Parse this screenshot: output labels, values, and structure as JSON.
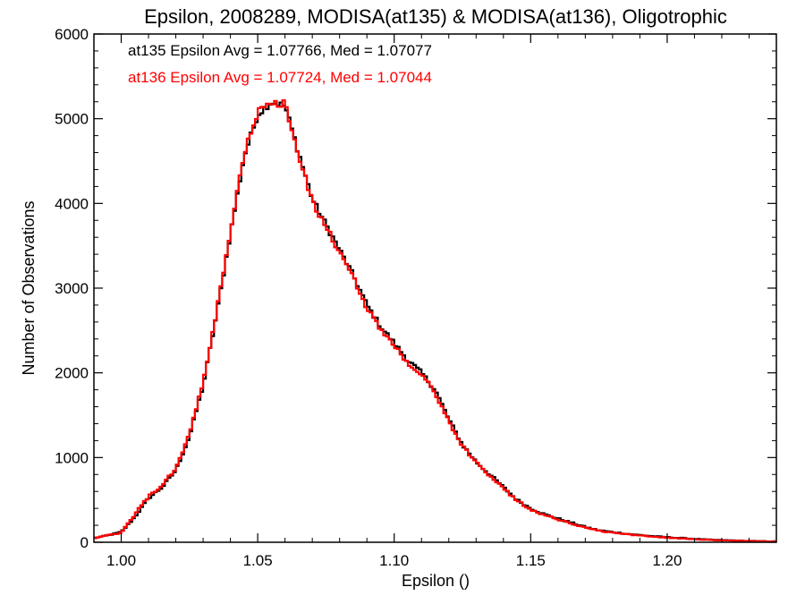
{
  "chart_data": {
    "type": "line",
    "title": "Epsilon, 2008289, MODISA(at135) & MODISA(at136), Oligotrophic",
    "xlabel": "Epsilon ()",
    "ylabel": "Number of Observations",
    "xlim": [
      0.99,
      1.24
    ],
    "ylim": [
      0,
      6000
    ],
    "x_ticks": [
      1.0,
      1.05,
      1.1,
      1.15,
      1.2
    ],
    "x_tick_labels": [
      "1.00",
      "1.05",
      "1.10",
      "1.15",
      "1.20"
    ],
    "y_ticks": [
      0,
      1000,
      2000,
      3000,
      4000,
      5000,
      6000
    ],
    "y_tick_labels": [
      "0",
      "1000",
      "2000",
      "3000",
      "4000",
      "5000",
      "6000"
    ],
    "grid": false,
    "step": true,
    "annotations": [
      {
        "text": "at135 Epsilon Avg = 1.07766, Med = 1.07077",
        "color": "#000000"
      },
      {
        "text": "at136 Epsilon Avg = 1.07724, Med = 1.07044",
        "color": "#ff0000"
      }
    ],
    "x": [
      0.99,
      0.995,
      1.0,
      1.005,
      1.01,
      1.015,
      1.02,
      1.025,
      1.03,
      1.035,
      1.04,
      1.045,
      1.05,
      1.055,
      1.06,
      1.065,
      1.07,
      1.075,
      1.08,
      1.085,
      1.09,
      1.095,
      1.1,
      1.105,
      1.11,
      1.115,
      1.12,
      1.125,
      1.13,
      1.135,
      1.14,
      1.145,
      1.15,
      1.155,
      1.16,
      1.165,
      1.17,
      1.175,
      1.18,
      1.185,
      1.19,
      1.195,
      1.2,
      1.205,
      1.21,
      1.215,
      1.22,
      1.225,
      1.23,
      1.235,
      1.24
    ],
    "series": [
      {
        "color": "#000000",
        "values": [
          50,
          80,
          120,
          300,
          520,
          650,
          850,
          1250,
          1850,
          2700,
          3650,
          4550,
          5050,
          5200,
          5150,
          4600,
          4050,
          3750,
          3450,
          3150,
          2800,
          2550,
          2350,
          2150,
          2000,
          1800,
          1450,
          1150,
          950,
          800,
          650,
          500,
          400,
          330,
          280,
          230,
          180,
          140,
          120,
          100,
          85,
          70,
          60,
          50,
          40,
          30,
          25,
          20,
          15,
          12,
          10
        ]
      },
      {
        "color": "#ff0000",
        "values": [
          50,
          80,
          110,
          330,
          540,
          670,
          870,
          1280,
          1880,
          2720,
          3680,
          4580,
          5080,
          5180,
          5180,
          4550,
          4030,
          3720,
          3420,
          3120,
          2770,
          2520,
          2320,
          2120,
          1970,
          1770,
          1430,
          1130,
          940,
          790,
          640,
          490,
          390,
          320,
          270,
          220,
          175,
          135,
          115,
          95,
          80,
          65,
          55,
          45,
          38,
          28,
          22,
          18,
          14,
          11,
          9
        ]
      }
    ]
  }
}
